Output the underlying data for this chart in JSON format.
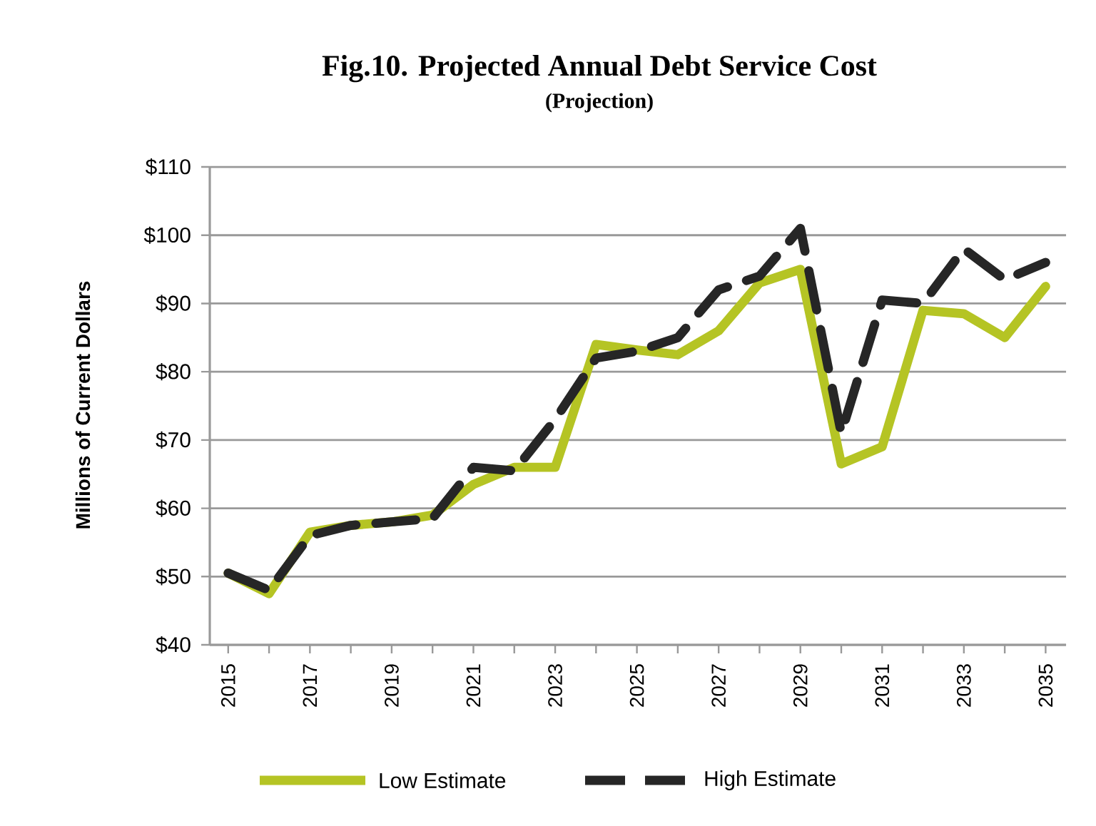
{
  "chart_data": {
    "type": "line",
    "title": "Fig.10. Projected Annual Debt Service Cost",
    "subtitle": "(Projection)",
    "ylabel": "Millions of Current Dollars",
    "categories": [
      "2015",
      null,
      "2017",
      null,
      "2019",
      null,
      "2021",
      null,
      "2023",
      null,
      "2025",
      null,
      "2027",
      null,
      "2029",
      null,
      "2031",
      null,
      "2033",
      null,
      "2035"
    ],
    "series": [
      {
        "name": "Low Estimate",
        "color": "#b5c424",
        "line_style": "solid",
        "values": [
          50.5,
          47.5,
          56.5,
          57.5,
          58,
          59,
          63.5,
          66,
          66,
          84,
          83.2,
          82.5,
          86,
          93,
          95,
          66.5,
          69,
          89,
          88.5,
          85,
          92.5
        ]
      },
      {
        "name": "High Estimate",
        "color": "#262626",
        "line_style": "dashed",
        "values": [
          50.5,
          48,
          56,
          57.5,
          58,
          58.5,
          66,
          65.5,
          73,
          82,
          83,
          85,
          92,
          94,
          101,
          71,
          90.5,
          90,
          98,
          93.5,
          96
        ]
      }
    ],
    "ylim": [
      40,
      110
    ],
    "yticks": [
      {
        "value": 40,
        "label": "$40"
      },
      {
        "value": 50,
        "label": "$50"
      },
      {
        "value": 60,
        "label": "$60"
      },
      {
        "value": 70,
        "label": "$70"
      },
      {
        "value": 80,
        "label": "$80"
      },
      {
        "value": 90,
        "label": "$90"
      },
      {
        "value": 100,
        "label": "$100"
      },
      {
        "value": 110,
        "label": "$110"
      }
    ],
    "grid": "y",
    "legend": "bottom",
    "marker": "none"
  }
}
